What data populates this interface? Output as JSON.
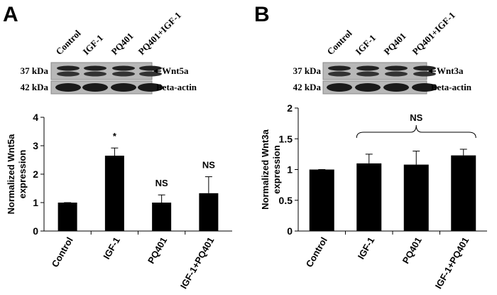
{
  "chart_data": [
    {
      "type": "bar",
      "panel": "A",
      "blot": {
        "lanes": [
          "Control",
          "IGF-1",
          "PQ401",
          "PQ401+IGF-1"
        ],
        "markers": [
          "37 kDa",
          "42 kDa"
        ],
        "bands": [
          "Wnt5a",
          "Beta-actin"
        ]
      },
      "ylabel": [
        "Normalized Wnt5a",
        "expression"
      ],
      "categories": [
        "Control",
        "IGF-1",
        "PQ401",
        "IGF-1+PQ401"
      ],
      "values": [
        1,
        2.65,
        1.0,
        1.33
      ],
      "errors": [
        0,
        0.27,
        0.27,
        0.58
      ],
      "color": "#000000",
      "ylim": [
        0,
        4
      ],
      "yticks": [
        0,
        1,
        2,
        3,
        4
      ],
      "annotations": [
        null,
        "*",
        "NS",
        "NS"
      ]
    },
    {
      "type": "bar",
      "panel": "B",
      "blot": {
        "lanes": [
          "Control",
          "IGF-1",
          "PQ401",
          "PQ401+IGF-1"
        ],
        "markers": [
          "37 kDa",
          "42 kDa"
        ],
        "bands": [
          "Wnt3a",
          "Beta-actin"
        ]
      },
      "ylabel": [
        "Normalized Wnt3a",
        "expression"
      ],
      "categories": [
        "Control",
        "IGF-1",
        "PQ401",
        "IGF-1+PQ401"
      ],
      "values": [
        1,
        1.1,
        1.08,
        1.23
      ],
      "errors": [
        0,
        0.15,
        0.22,
        0.1
      ],
      "color": "#000000",
      "ylim": [
        0,
        2
      ],
      "yticks": [
        0,
        0.5,
        1,
        1.5,
        2
      ],
      "bracket_label": "NS"
    }
  ]
}
